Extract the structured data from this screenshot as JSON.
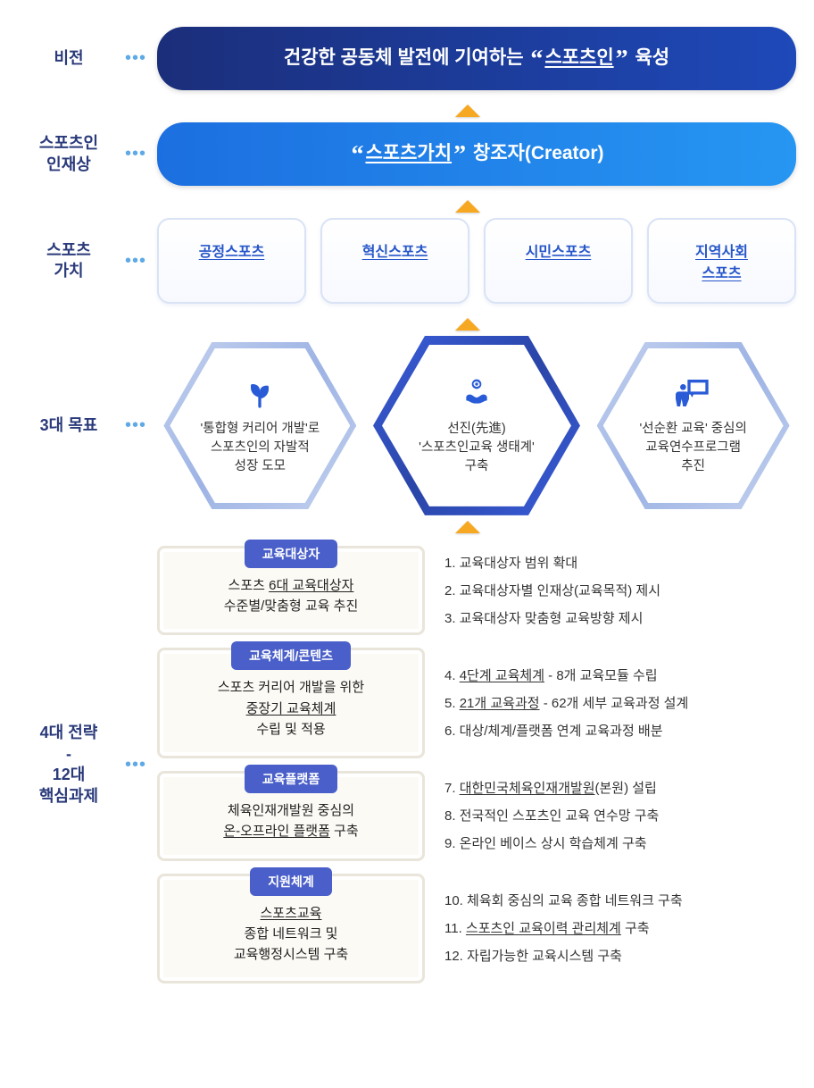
{
  "labels": {
    "vision": "비전",
    "ideal": "스포츠인\n인재상",
    "values": "스포츠\n가치",
    "goals": "3대 목표",
    "strategy": "4대 전략\n-\n12대\n핵심과제"
  },
  "vision_bar": {
    "pre": "건강한 공동체 발전에 기여하는 ",
    "emph": "스포츠인",
    "post": " 육성",
    "bg_start": "#1b2e7a",
    "bg_end": "#1e49b9"
  },
  "creator_bar": {
    "emph": "스포츠가치",
    "post": " 창조자(Creator)",
    "bg_start": "#1c6fe0",
    "bg_end": "#2696f2"
  },
  "values": [
    {
      "label": "공정스포츠"
    },
    {
      "label": "혁신스포츠"
    },
    {
      "label": "시민스포츠"
    },
    {
      "label": "지역사회\n스포츠"
    }
  ],
  "goals": [
    {
      "icon": "sprout",
      "text": "'통합형 커리어 개발'로\n스포츠인의 자발적\n성장 도모"
    },
    {
      "icon": "cycle-hands",
      "text": "선진(先進)\n'스포츠인교육 생태계'\n구축"
    },
    {
      "icon": "teacher",
      "text": "'선순환 교육' 중심의\n교육연수프로그램\n추진"
    }
  ],
  "strategies": [
    {
      "chip": "교육대상자",
      "left": "스포츠 6대 교육대상자\n수준별/맞춤형 교육 추진",
      "left_underline": "6대 교육대상자",
      "tasks": [
        "1. 교육대상자 범위 확대",
        "2. 교육대상자별 인재상(교육목적) 제시",
        "3. 교육대상자 맞춤형 교육방향 제시"
      ]
    },
    {
      "chip": "교육체계/콘텐츠",
      "left": "스포츠 커리어 개발을 위한\n중장기 교육체계\n수립 및 적용",
      "left_underline": "중장기 교육체계",
      "tasks": [
        "4. 4단계 교육체계 - 8개 교육모듈 수립",
        "5. 21개 교육과정 - 62개 세부 교육과정 설계",
        "6. 대상/체계/플랫폼 연계 교육과정 배분"
      ],
      "task_underlines": [
        "4단계 교육체계",
        "21개 교육과정"
      ]
    },
    {
      "chip": "교육플랫폼",
      "left": "체육인재개발원 중심의\n온-오프라인 플랫폼 구축",
      "left_underline": "온-오프라인 플랫폼",
      "tasks": [
        "7. 대한민국체육인재개발원(본원) 설립",
        "8. 전국적인 스포츠인 교육 연수망 구축",
        "9. 온라인 베이스 상시 학습체계 구축"
      ],
      "task_underlines": [
        "대한민국체육인재개발원"
      ]
    },
    {
      "chip": "지원체계",
      "left": "스포츠교육\n종합 네트워크 및\n교육행정시스템 구축",
      "left_underline": "스포츠교육",
      "tasks": [
        "10. 체육회 중심의 교육 종합 네트워크 구축",
        "11. 스포츠인 교육이력 관리체계 구축",
        "12. 자립가능한 교육시스템 구축"
      ],
      "task_underlines": [
        "스포츠인 교육이력 관리체계"
      ]
    }
  ],
  "colors": {
    "label_text": "#2a3a7a",
    "dots": "#5fa9e6",
    "value_text": "#2756c9",
    "value_border": "#d9e3f5",
    "hex_outer": "#9db3e4",
    "hex_center": "#2a45a8",
    "chip_bg": "#4a5fc9",
    "arrow": "#f7a823",
    "card_bg": "#fcfaf5",
    "card_border": "#e9e5da",
    "icon": "#2a5bd7"
  }
}
